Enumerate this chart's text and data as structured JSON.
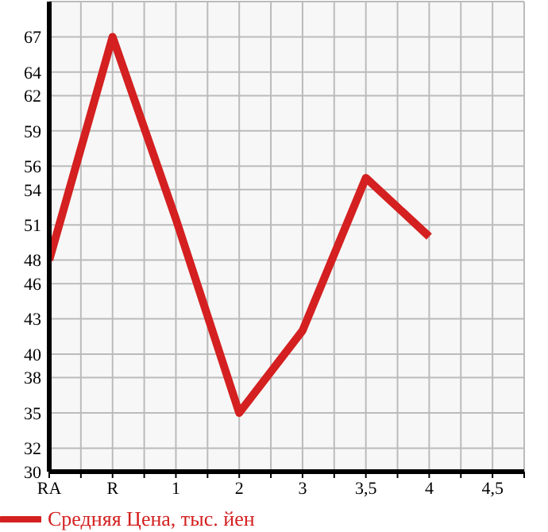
{
  "chart_data": {
    "type": "line",
    "categories": [
      "RA",
      "R",
      "1",
      "2",
      "3",
      "3,5",
      "4",
      "4,5"
    ],
    "series": [
      {
        "name": "Средняя Цена, тыс. йен",
        "color": "#d42020",
        "values": [
          48,
          67,
          51.5,
          35,
          42,
          55,
          50,
          null
        ]
      }
    ],
    "ylim": [
      30,
      70
    ],
    "yticks": [
      30,
      32,
      35,
      38,
      40,
      43,
      46,
      48,
      51,
      54,
      56,
      59,
      62,
      64,
      67,
      {
        "value": 70,
        "label": null
      }
    ],
    "grid": true,
    "legend": "bottom",
    "marker": "none",
    "line_style": "solid"
  }
}
